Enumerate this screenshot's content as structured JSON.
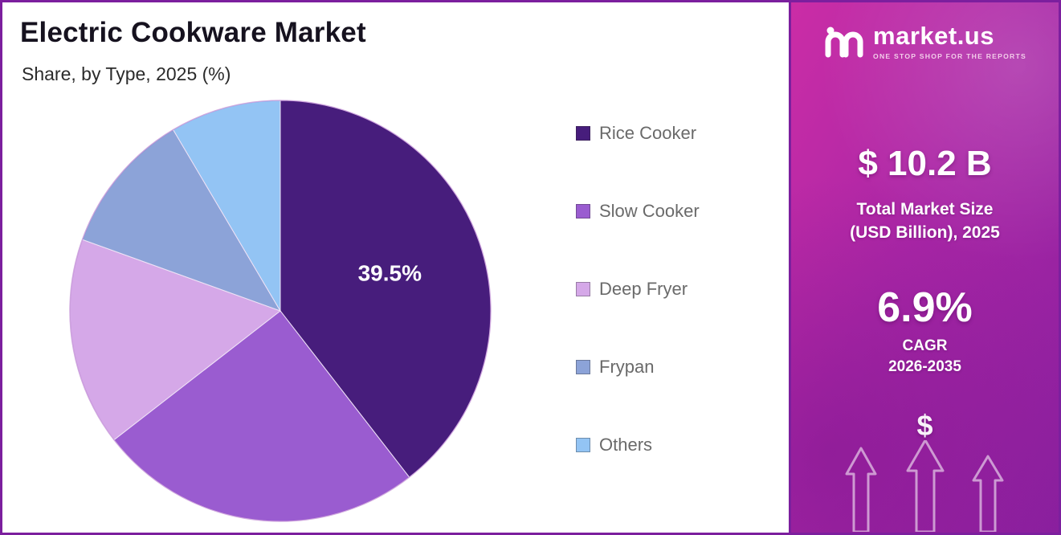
{
  "header": {
    "title": "Electric Cookware Market",
    "subtitle": "Share, by Type, 2025 (%)"
  },
  "chart_data": {
    "type": "pie",
    "labels": [
      "Rice Cooker",
      "Slow Cooker",
      "Deep Fryer",
      "Frypan",
      "Others"
    ],
    "values": [
      39.5,
      25,
      16,
      11,
      8.5
    ],
    "colors": [
      "#471d7c",
      "#9a5cd0",
      "#d5a8e8",
      "#8ca3d8",
      "#93c4f4"
    ],
    "title": "Electric Cookware Market",
    "subtitle": "Share, by Type, 2025 (%)",
    "start_angle_deg": 0,
    "direction": "clockwise",
    "legend_position": "right",
    "data_labels": [
      {
        "slice": "Rice Cooker",
        "text": "39.5%"
      }
    ]
  },
  "legend": {
    "items": [
      {
        "label": "Rice Cooker"
      },
      {
        "label": "Slow Cooker"
      },
      {
        "label": "Deep Fryer"
      },
      {
        "label": "Frypan"
      },
      {
        "label": "Others"
      }
    ]
  },
  "side_panel": {
    "logo": {
      "brand": "market.us",
      "tagline": "ONE STOP SHOP FOR THE REPORTS"
    },
    "market_size": {
      "value": "$ 10.2 B",
      "label_line1": "Total Market Size",
      "label_line2": "(USD Billion), 2025"
    },
    "cagr": {
      "value": "6.9%",
      "label_line1": "CAGR",
      "label_line2": "2026-2035"
    },
    "dollar_glyph": "$",
    "colors": {
      "gradient_start": "#cb2da6",
      "gradient_end": "#8b209f"
    }
  }
}
